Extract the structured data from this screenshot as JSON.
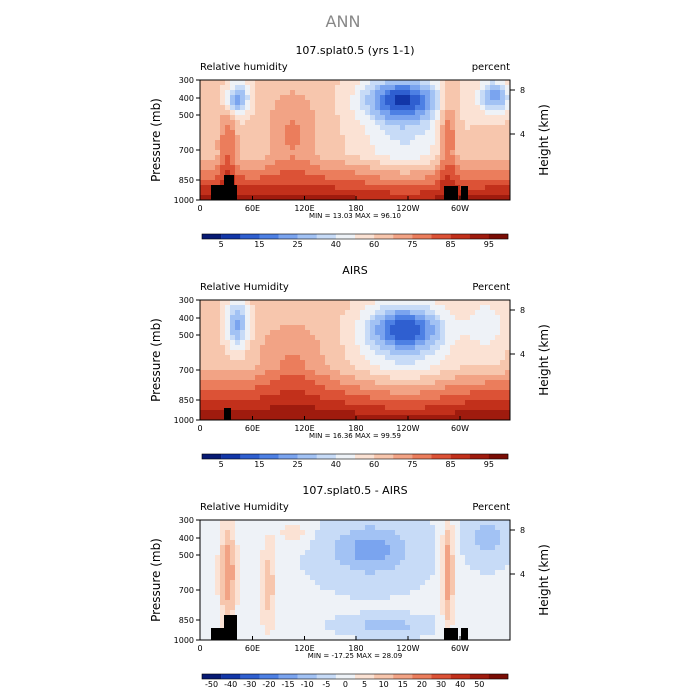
{
  "figure_title": "ANN",
  "chart_data": [
    {
      "type": "heatmap",
      "title": "107.splat0.5 (yrs 1-1)",
      "left_label": "Relative humidity",
      "right_label": "percent",
      "ylabel": "Pressure (mb)",
      "ylabel_right": "Height (km)",
      "y_ticks": [
        "300",
        "400",
        "500",
        "700",
        "850",
        "1000"
      ],
      "y_ticks_right": [
        "8",
        "4"
      ],
      "x_ticks": [
        "0",
        "60E",
        "120E",
        "180",
        "120W",
        "60W"
      ],
      "min_label": "MIN =",
      "min": "13.03",
      "max_label": "MAX =",
      "max": "96.10",
      "colorbar_labels": [
        "5",
        "15",
        "25",
        "40",
        "60",
        "75",
        "85",
        "95"
      ],
      "colorbar_colors": [
        "#071a74",
        "#1236a8",
        "#2f5fd0",
        "#4d80e4",
        "#7aa4ef",
        "#a2c2f4",
        "#c7dbf7",
        "#eef2f7",
        "#fbe2d4",
        "#f7c6ad",
        "#f2a385",
        "#eb7d5c",
        "#dc5236",
        "#c2301b",
        "#9f1b0e",
        "#7a0d05"
      ],
      "zmin": 0,
      "zmax": 100
    },
    {
      "type": "heatmap",
      "title": "AIRS",
      "left_label": "Relative Humidity",
      "right_label": "Percent",
      "ylabel": "Pressure (mb)",
      "ylabel_right": "Height (km)",
      "y_ticks": [
        "300",
        "400",
        "500",
        "700",
        "850",
        "1000"
      ],
      "y_ticks_right": [
        "8",
        "4"
      ],
      "x_ticks": [
        "0",
        "60E",
        "120E",
        "180",
        "120W",
        "60W"
      ],
      "min_label": "MIN =",
      "min": "16.36",
      "max_label": "MAX =",
      "max": "99.59",
      "colorbar_labels": [
        "5",
        "15",
        "25",
        "40",
        "60",
        "75",
        "85",
        "95"
      ],
      "colorbar_colors": [
        "#071a74",
        "#1236a8",
        "#2f5fd0",
        "#4d80e4",
        "#7aa4ef",
        "#a2c2f4",
        "#c7dbf7",
        "#eef2f7",
        "#fbe2d4",
        "#f7c6ad",
        "#f2a385",
        "#eb7d5c",
        "#dc5236",
        "#c2301b",
        "#9f1b0e",
        "#7a0d05"
      ],
      "zmin": 0,
      "zmax": 100
    },
    {
      "type": "heatmap",
      "title": "107.splat0.5 - AIRS",
      "left_label": "Relative Humidity",
      "right_label": "Percent",
      "ylabel": "Pressure (mb)",
      "ylabel_right": "Height (km)",
      "y_ticks": [
        "300",
        "400",
        "500",
        "700",
        "850",
        "1000"
      ],
      "y_ticks_right": [
        "8",
        "4"
      ],
      "x_ticks": [
        "0",
        "60E",
        "120E",
        "180",
        "120W",
        "60W"
      ],
      "min_label": "MIN =",
      "min": "-17.25",
      "max_label": "MAX =",
      "max": "28.09",
      "colorbar_labels": [
        "-50",
        "-40",
        "-30",
        "-20",
        "-15",
        "-10",
        "-5",
        "0",
        "5",
        "10",
        "15",
        "20",
        "30",
        "40",
        "50"
      ],
      "colorbar_colors": [
        "#071a74",
        "#1236a8",
        "#2f5fd0",
        "#4d80e4",
        "#7aa4ef",
        "#a2c2f4",
        "#c7dbf7",
        "#eef2f7",
        "#fbe2d4",
        "#f7c6ad",
        "#f2a385",
        "#eb7d5c",
        "#dc5236",
        "#c2301b",
        "#9f1b0e",
        "#7a0d05"
      ],
      "zmin": -20,
      "zmax": 30
    }
  ]
}
